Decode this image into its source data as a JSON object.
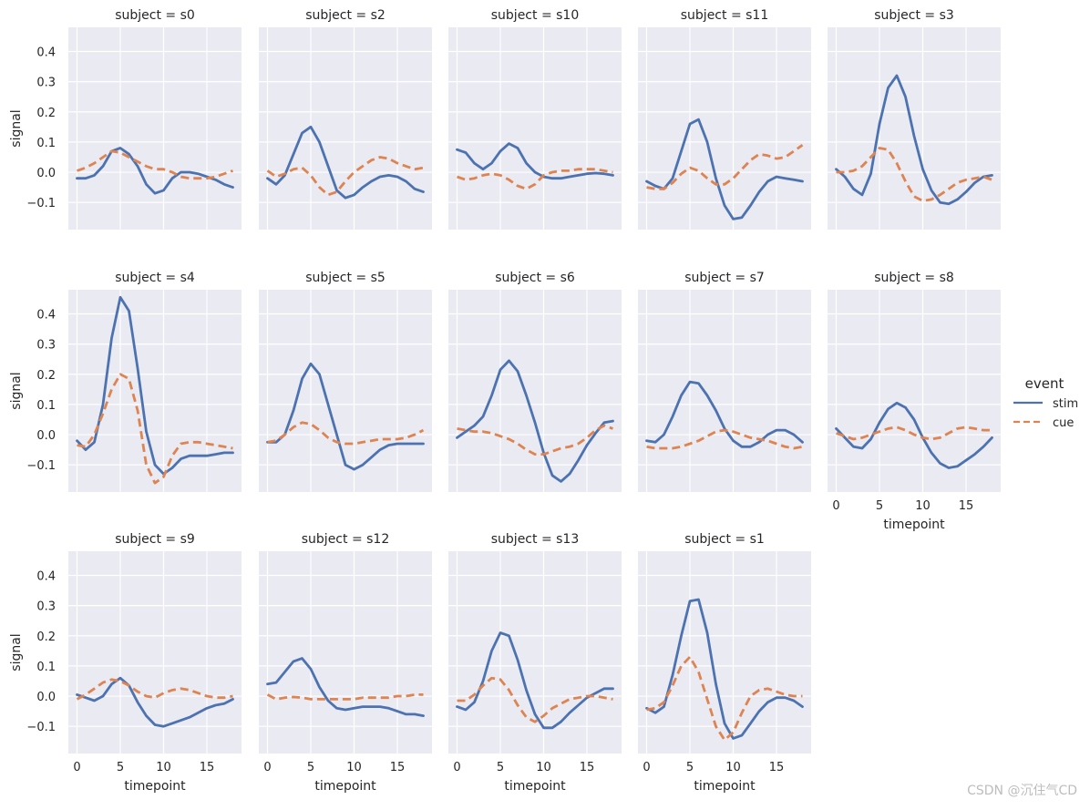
{
  "figure": {
    "watermark": "CSDN @沉住气CD",
    "legend_title": "event",
    "legend_position": "right-center"
  },
  "colors": {
    "background": "#ffffff",
    "panel": "#eaeaf2",
    "grid": "#ffffff",
    "text": "#262626",
    "watermark": "#bdbdbd",
    "stim": "#4c72b0",
    "cue": "#dd8452"
  },
  "chart_data": {
    "type": "line",
    "title": "",
    "xlabel": "timepoint",
    "ylabel": "signal",
    "xlim": [
      -1,
      19
    ],
    "ylim": [
      -0.19,
      0.48
    ],
    "xticks": [
      0,
      5,
      10,
      15
    ],
    "yticks": [
      -0.1,
      0.0,
      0.1,
      0.2,
      0.3,
      0.4
    ],
    "xtick_labels": [
      "0",
      "5",
      "10",
      "15"
    ],
    "ytick_labels": [
      "−0.1",
      "0.0",
      "0.1",
      "0.2",
      "0.3",
      "0.4"
    ],
    "legend": [
      {
        "name": "stim",
        "style": "solid"
      },
      {
        "name": "cue",
        "style": "dashed"
      }
    ],
    "x": [
      0,
      1,
      2,
      3,
      4,
      5,
      6,
      7,
      8,
      9,
      10,
      11,
      12,
      13,
      14,
      15,
      16,
      17,
      18
    ],
    "panels": [
      {
        "title": "subject = s0",
        "stim": [
          -0.02,
          -0.02,
          -0.01,
          0.02,
          0.07,
          0.08,
          0.06,
          0.02,
          -0.04,
          -0.07,
          -0.06,
          -0.02,
          0.0,
          0.0,
          -0.005,
          -0.015,
          -0.025,
          -0.04,
          -0.05
        ],
        "cue": [
          0.005,
          0.015,
          0.03,
          0.05,
          0.07,
          0.065,
          0.05,
          0.035,
          0.02,
          0.01,
          0.01,
          0.0,
          -0.015,
          -0.02,
          -0.02,
          -0.02,
          -0.015,
          -0.005,
          0.005
        ]
      },
      {
        "title": "subject = s2",
        "stim": [
          -0.02,
          -0.04,
          -0.01,
          0.06,
          0.13,
          0.15,
          0.1,
          0.02,
          -0.06,
          -0.085,
          -0.075,
          -0.05,
          -0.03,
          -0.015,
          -0.01,
          -0.015,
          -0.03,
          -0.055,
          -0.065
        ],
        "cue": [
          0.005,
          -0.015,
          -0.005,
          0.01,
          0.015,
          -0.01,
          -0.05,
          -0.075,
          -0.065,
          -0.03,
          0.0,
          0.02,
          0.04,
          0.05,
          0.045,
          0.03,
          0.02,
          0.01,
          0.015
        ]
      },
      {
        "title": "subject = s10",
        "stim": [
          0.075,
          0.065,
          0.03,
          0.01,
          0.03,
          0.07,
          0.095,
          0.08,
          0.03,
          0.0,
          -0.015,
          -0.02,
          -0.02,
          -0.015,
          -0.01,
          -0.005,
          -0.003,
          -0.005,
          -0.01
        ],
        "cue": [
          -0.015,
          -0.025,
          -0.02,
          -0.01,
          -0.005,
          -0.01,
          -0.025,
          -0.045,
          -0.055,
          -0.04,
          -0.01,
          0.0,
          0.005,
          0.005,
          0.01,
          0.01,
          0.01,
          0.005,
          0.0
        ]
      },
      {
        "title": "subject = s11",
        "stim": [
          -0.03,
          -0.045,
          -0.055,
          -0.02,
          0.07,
          0.16,
          0.175,
          0.1,
          -0.02,
          -0.11,
          -0.155,
          -0.15,
          -0.11,
          -0.065,
          -0.03,
          -0.015,
          -0.02,
          -0.025,
          -0.03
        ],
        "cue": [
          -0.05,
          -0.055,
          -0.055,
          -0.035,
          -0.005,
          0.015,
          0.005,
          -0.02,
          -0.04,
          -0.04,
          -0.02,
          0.01,
          0.04,
          0.06,
          0.055,
          0.045,
          0.05,
          0.07,
          0.09
        ]
      },
      {
        "title": "subject = s3",
        "stim": [
          0.01,
          -0.015,
          -0.055,
          -0.075,
          -0.005,
          0.16,
          0.28,
          0.32,
          0.25,
          0.12,
          0.01,
          -0.06,
          -0.1,
          -0.105,
          -0.09,
          -0.065,
          -0.035,
          -0.015,
          -0.01
        ],
        "cue": [
          0.0,
          0.0,
          0.005,
          0.02,
          0.05,
          0.08,
          0.075,
          0.03,
          -0.03,
          -0.08,
          -0.095,
          -0.09,
          -0.075,
          -0.055,
          -0.035,
          -0.025,
          -0.02,
          -0.015,
          -0.025
        ]
      },
      {
        "title": "subject = s4",
        "stim": [
          -0.02,
          -0.05,
          -0.025,
          0.1,
          0.32,
          0.455,
          0.41,
          0.22,
          0.01,
          -0.1,
          -0.13,
          -0.11,
          -0.08,
          -0.07,
          -0.07,
          -0.07,
          -0.065,
          -0.06,
          -0.06
        ],
        "cue": [
          -0.035,
          -0.04,
          0.0,
          0.07,
          0.15,
          0.2,
          0.185,
          0.08,
          -0.1,
          -0.16,
          -0.14,
          -0.07,
          -0.03,
          -0.025,
          -0.025,
          -0.03,
          -0.035,
          -0.04,
          -0.045
        ]
      },
      {
        "title": "subject = s5",
        "stim": [
          -0.025,
          -0.025,
          0.0,
          0.08,
          0.185,
          0.235,
          0.2,
          0.1,
          0.0,
          -0.1,
          -0.115,
          -0.1,
          -0.075,
          -0.05,
          -0.035,
          -0.03,
          -0.03,
          -0.03,
          -0.03
        ],
        "cue": [
          -0.025,
          -0.02,
          0.0,
          0.025,
          0.04,
          0.035,
          0.015,
          -0.01,
          -0.025,
          -0.03,
          -0.03,
          -0.025,
          -0.02,
          -0.015,
          -0.015,
          -0.015,
          -0.01,
          0.0,
          0.015
        ]
      },
      {
        "title": "subject = s6",
        "stim": [
          -0.01,
          0.01,
          0.03,
          0.06,
          0.13,
          0.215,
          0.245,
          0.21,
          0.13,
          0.04,
          -0.06,
          -0.135,
          -0.155,
          -0.13,
          -0.085,
          -0.035,
          0.005,
          0.04,
          0.045
        ],
        "cue": [
          0.02,
          0.015,
          0.01,
          0.01,
          0.005,
          -0.005,
          -0.015,
          -0.03,
          -0.05,
          -0.065,
          -0.065,
          -0.055,
          -0.045,
          -0.04,
          -0.03,
          -0.01,
          0.015,
          0.03,
          0.02
        ]
      },
      {
        "title": "subject = s7",
        "stim": [
          -0.02,
          -0.025,
          0.0,
          0.06,
          0.13,
          0.175,
          0.17,
          0.13,
          0.08,
          0.02,
          -0.02,
          -0.04,
          -0.04,
          -0.025,
          0.0,
          0.015,
          0.015,
          0.0,
          -0.025
        ],
        "cue": [
          -0.04,
          -0.045,
          -0.045,
          -0.045,
          -0.04,
          -0.03,
          -0.02,
          -0.005,
          0.01,
          0.015,
          0.01,
          0.0,
          -0.01,
          -0.015,
          -0.02,
          -0.03,
          -0.04,
          -0.045,
          -0.04
        ]
      },
      {
        "title": "subject = s8",
        "stim": [
          0.02,
          -0.01,
          -0.04,
          -0.045,
          -0.015,
          0.04,
          0.085,
          0.105,
          0.09,
          0.05,
          -0.01,
          -0.06,
          -0.095,
          -0.11,
          -0.105,
          -0.085,
          -0.065,
          -0.04,
          -0.01
        ],
        "cue": [
          0.005,
          -0.005,
          -0.015,
          -0.01,
          0.0,
          0.01,
          0.02,
          0.025,
          0.015,
          0.0,
          -0.01,
          -0.015,
          -0.01,
          0.005,
          0.02,
          0.025,
          0.02,
          0.015,
          0.015
        ]
      },
      {
        "title": "subject = s9",
        "stim": [
          0.005,
          -0.005,
          -0.015,
          0.0,
          0.04,
          0.06,
          0.035,
          -0.02,
          -0.065,
          -0.095,
          -0.1,
          -0.09,
          -0.08,
          -0.07,
          -0.055,
          -0.04,
          -0.03,
          -0.025,
          -0.01
        ],
        "cue": [
          -0.01,
          0.005,
          0.025,
          0.045,
          0.055,
          0.05,
          0.035,
          0.015,
          0.0,
          -0.005,
          0.01,
          0.02,
          0.025,
          0.02,
          0.01,
          0.0,
          -0.005,
          -0.005,
          0.0
        ]
      },
      {
        "title": "subject = s12",
        "stim": [
          0.04,
          0.045,
          0.08,
          0.115,
          0.125,
          0.09,
          0.03,
          -0.015,
          -0.04,
          -0.045,
          -0.04,
          -0.035,
          -0.035,
          -0.035,
          -0.04,
          -0.05,
          -0.06,
          -0.06,
          -0.065
        ],
        "cue": [
          0.005,
          -0.01,
          -0.005,
          -0.003,
          -0.005,
          -0.01,
          -0.01,
          -0.01,
          -0.01,
          -0.01,
          -0.01,
          -0.005,
          -0.005,
          -0.005,
          -0.005,
          0.0,
          0.0,
          0.005,
          0.005
        ]
      },
      {
        "title": "subject = s13",
        "stim": [
          -0.035,
          -0.045,
          -0.02,
          0.05,
          0.15,
          0.21,
          0.2,
          0.12,
          0.02,
          -0.06,
          -0.105,
          -0.105,
          -0.085,
          -0.055,
          -0.03,
          -0.005,
          0.01,
          0.025,
          0.025
        ],
        "cue": [
          -0.015,
          -0.015,
          0.005,
          0.035,
          0.06,
          0.055,
          0.02,
          -0.03,
          -0.07,
          -0.085,
          -0.065,
          -0.04,
          -0.025,
          -0.01,
          -0.005,
          0.0,
          0.0,
          -0.005,
          -0.01
        ]
      },
      {
        "title": "subject = s1",
        "stim": [
          -0.04,
          -0.055,
          -0.035,
          0.07,
          0.2,
          0.315,
          0.32,
          0.21,
          0.04,
          -0.09,
          -0.14,
          -0.13,
          -0.09,
          -0.05,
          -0.02,
          -0.005,
          -0.005,
          -0.015,
          -0.035
        ],
        "cue": [
          -0.045,
          -0.04,
          -0.02,
          0.035,
          0.1,
          0.13,
          0.08,
          -0.01,
          -0.1,
          -0.145,
          -0.12,
          -0.055,
          0.0,
          0.02,
          0.025,
          0.015,
          0.005,
          0.0,
          0.0
        ]
      }
    ]
  }
}
